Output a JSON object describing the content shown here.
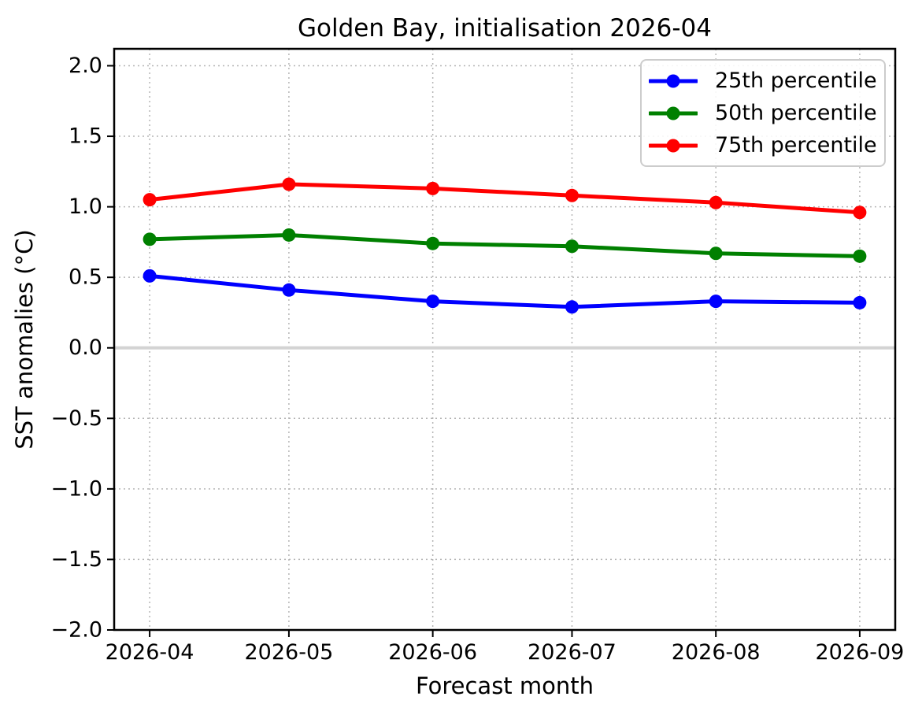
{
  "chart_data": {
    "type": "line",
    "title": "Golden Bay, initialisation 2026-04",
    "xlabel": "Forecast month",
    "ylabel": "SST anomalies (°C)",
    "x_tick_labels": [
      "2026-04",
      "2026-05",
      "2026-06",
      "2026-07",
      "2026-08",
      "2026-09"
    ],
    "x_day_offsets": [
      0,
      30,
      61,
      91,
      122,
      153
    ],
    "xlim_days": [
      -7.65,
      160.65
    ],
    "y_ticks": [
      2.0,
      1.5,
      1.0,
      0.5,
      0.0,
      -0.5,
      -1.0,
      -1.5,
      -2.0
    ],
    "y_tick_labels": [
      "2.0",
      "1.5",
      "1.0",
      "0.5",
      "0.0",
      "−0.5",
      "−1.0",
      "−1.5",
      "−2.0"
    ],
    "ylim": [
      -2.0,
      2.12
    ],
    "grid": true,
    "grid_style": "dotted",
    "zero_line": true,
    "legend_position": "upper right",
    "series": [
      {
        "name": "25th percentile",
        "color": "#0000ff",
        "values": [
          0.51,
          0.41,
          0.33,
          0.29,
          0.33,
          0.32
        ]
      },
      {
        "name": "50th percentile",
        "color": "#008000",
        "values": [
          0.77,
          0.8,
          0.74,
          0.72,
          0.67,
          0.65
        ]
      },
      {
        "name": "75th percentile",
        "color": "#ff0000",
        "values": [
          1.05,
          1.16,
          1.13,
          1.08,
          1.03,
          0.96
        ]
      }
    ],
    "colors": {
      "grid": "#b5b5b5",
      "zero_line": "#d3d3d3",
      "spine": "#000000",
      "tick_label": "#000000",
      "legend_border": "#cccccc",
      "background": "#ffffff"
    }
  }
}
